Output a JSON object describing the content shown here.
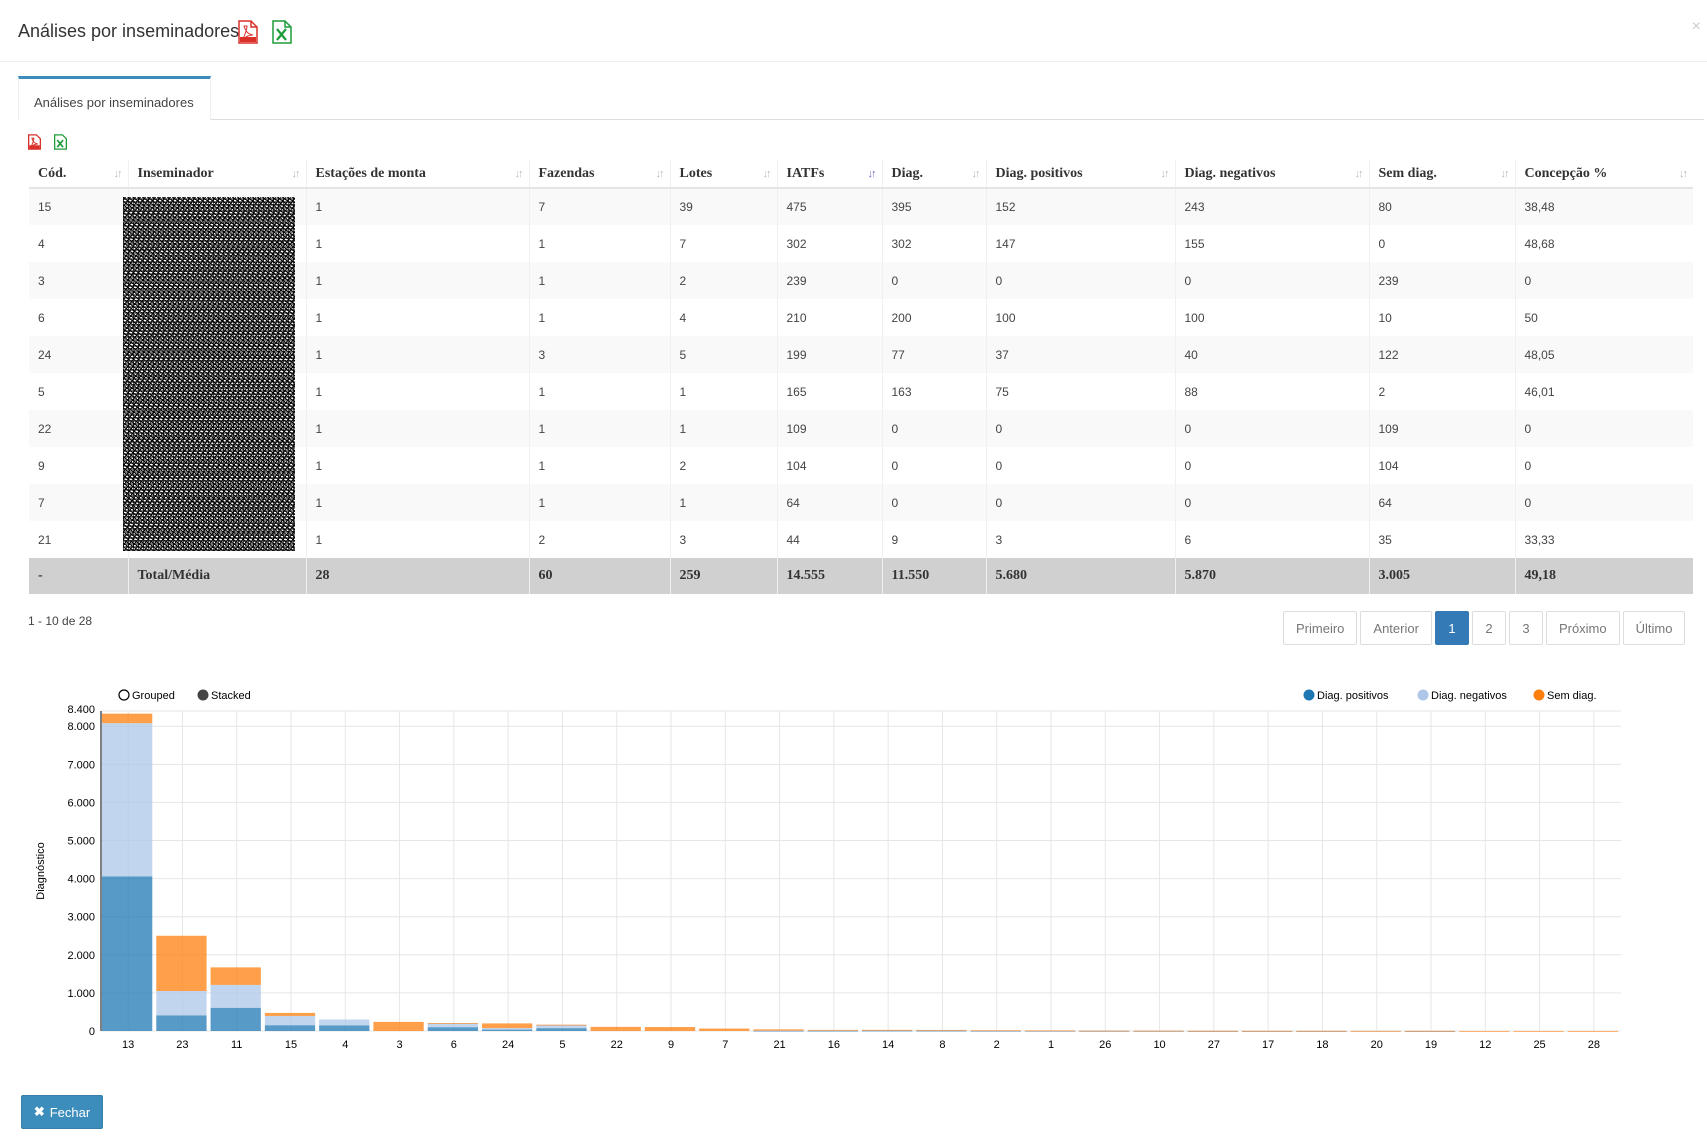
{
  "modal": {
    "title": "Análises por inseminadores",
    "close_label": "×",
    "tab_label": "Análises por inseminadores",
    "close_button_label": "Fechar"
  },
  "icons": {
    "pdf": "pdf-file-icon",
    "excel": "excel-file-icon",
    "close": "close-icon",
    "sort": "sort-icon"
  },
  "colors": {
    "accent": "#3c8dbc",
    "pdf_red": "#d9302a",
    "excel_green": "#1f9b3a",
    "series_pos": "#1f77b4",
    "series_neg": "#aec7e8",
    "series_sem": "#ff7f0e"
  },
  "table": {
    "headers": [
      "Cód.",
      "Inseminador",
      "Estações de monta",
      "Fazendas",
      "Lotes",
      "IATFs",
      "Diag.",
      "Diag. positivos",
      "Diag. negativos",
      "Sem diag.",
      "Concepção %"
    ],
    "rows": [
      [
        "15",
        "",
        "1",
        "7",
        "39",
        "475",
        "395",
        "152",
        "243",
        "80",
        "38,48"
      ],
      [
        "4",
        "",
        "1",
        "1",
        "7",
        "302",
        "302",
        "147",
        "155",
        "0",
        "48,68"
      ],
      [
        "3",
        "",
        "1",
        "1",
        "2",
        "239",
        "0",
        "0",
        "0",
        "239",
        "0"
      ],
      [
        "6",
        "",
        "1",
        "1",
        "4",
        "210",
        "200",
        "100",
        "100",
        "10",
        "50"
      ],
      [
        "24",
        "",
        "1",
        "3",
        "5",
        "199",
        "77",
        "37",
        "40",
        "122",
        "48,05"
      ],
      [
        "5",
        "",
        "1",
        "1",
        "1",
        "165",
        "163",
        "75",
        "88",
        "2",
        "46,01"
      ],
      [
        "22",
        "",
        "1",
        "1",
        "1",
        "109",
        "0",
        "0",
        "0",
        "109",
        "0"
      ],
      [
        "9",
        "",
        "1",
        "1",
        "2",
        "104",
        "0",
        "0",
        "0",
        "104",
        "0"
      ],
      [
        "7",
        "",
        "1",
        "1",
        "1",
        "64",
        "0",
        "0",
        "0",
        "64",
        "0"
      ],
      [
        "21",
        "",
        "1",
        "2",
        "3",
        "44",
        "9",
        "3",
        "6",
        "35",
        "33,33"
      ]
    ],
    "footer": [
      "-",
      "Total/Média",
      "28",
      "60",
      "259",
      "14.555",
      "11.550",
      "5.680",
      "5.870",
      "3.005",
      "49,18"
    ]
  },
  "pagination": {
    "info": "1 - 10 de 28",
    "first": "Primeiro",
    "prev": "Anterior",
    "pages": [
      "1",
      "2",
      "3"
    ],
    "current": "1",
    "next": "Próximo",
    "last": "Último"
  },
  "chart_data": {
    "type": "bar",
    "stacked": true,
    "mode_options": [
      "Grouped",
      "Stacked"
    ],
    "mode_selected": "Stacked",
    "ylabel": "Diagnóstico",
    "xlabel": "",
    "ylim": [
      0,
      8400
    ],
    "yticks": [
      0,
      1000,
      2000,
      3000,
      4000,
      5000,
      6000,
      7000,
      8000,
      8400
    ],
    "ytick_labels": [
      "0",
      "1.000",
      "2.000",
      "3.000",
      "4.000",
      "5.000",
      "6.000",
      "7.000",
      "8.000",
      "8.400"
    ],
    "grid": true,
    "legend_position": "top-right",
    "categories": [
      "13",
      "23",
      "11",
      "15",
      "4",
      "3",
      "6",
      "24",
      "5",
      "22",
      "9",
      "7",
      "21",
      "16",
      "14",
      "8",
      "2",
      "1",
      "26",
      "10",
      "27",
      "17",
      "18",
      "20",
      "19",
      "12",
      "25",
      "28"
    ],
    "series": [
      {
        "name": "Diag. positivos",
        "color": "#1f77b4",
        "values": [
          4060,
          410,
          610,
          152,
          147,
          0,
          100,
          37,
          75,
          0,
          0,
          0,
          3,
          5,
          10,
          8,
          3,
          3,
          2,
          2,
          1,
          1,
          1,
          0,
          1,
          0,
          0,
          0
        ]
      },
      {
        "name": "Diag. negativos",
        "color": "#aec7e8",
        "values": [
          4020,
          640,
          600,
          243,
          155,
          0,
          100,
          40,
          88,
          0,
          0,
          0,
          6,
          8,
          12,
          10,
          4,
          4,
          3,
          2,
          2,
          1,
          1,
          1,
          1,
          0,
          0,
          0
        ]
      },
      {
        "name": "Sem diag.",
        "color": "#ff7f0e",
        "values": [
          250,
          1450,
          460,
          80,
          0,
          239,
          10,
          122,
          2,
          109,
          104,
          64,
          35,
          15,
          8,
          10,
          12,
          8,
          6,
          5,
          4,
          3,
          3,
          2,
          2,
          1,
          1,
          1
        ]
      }
    ]
  }
}
